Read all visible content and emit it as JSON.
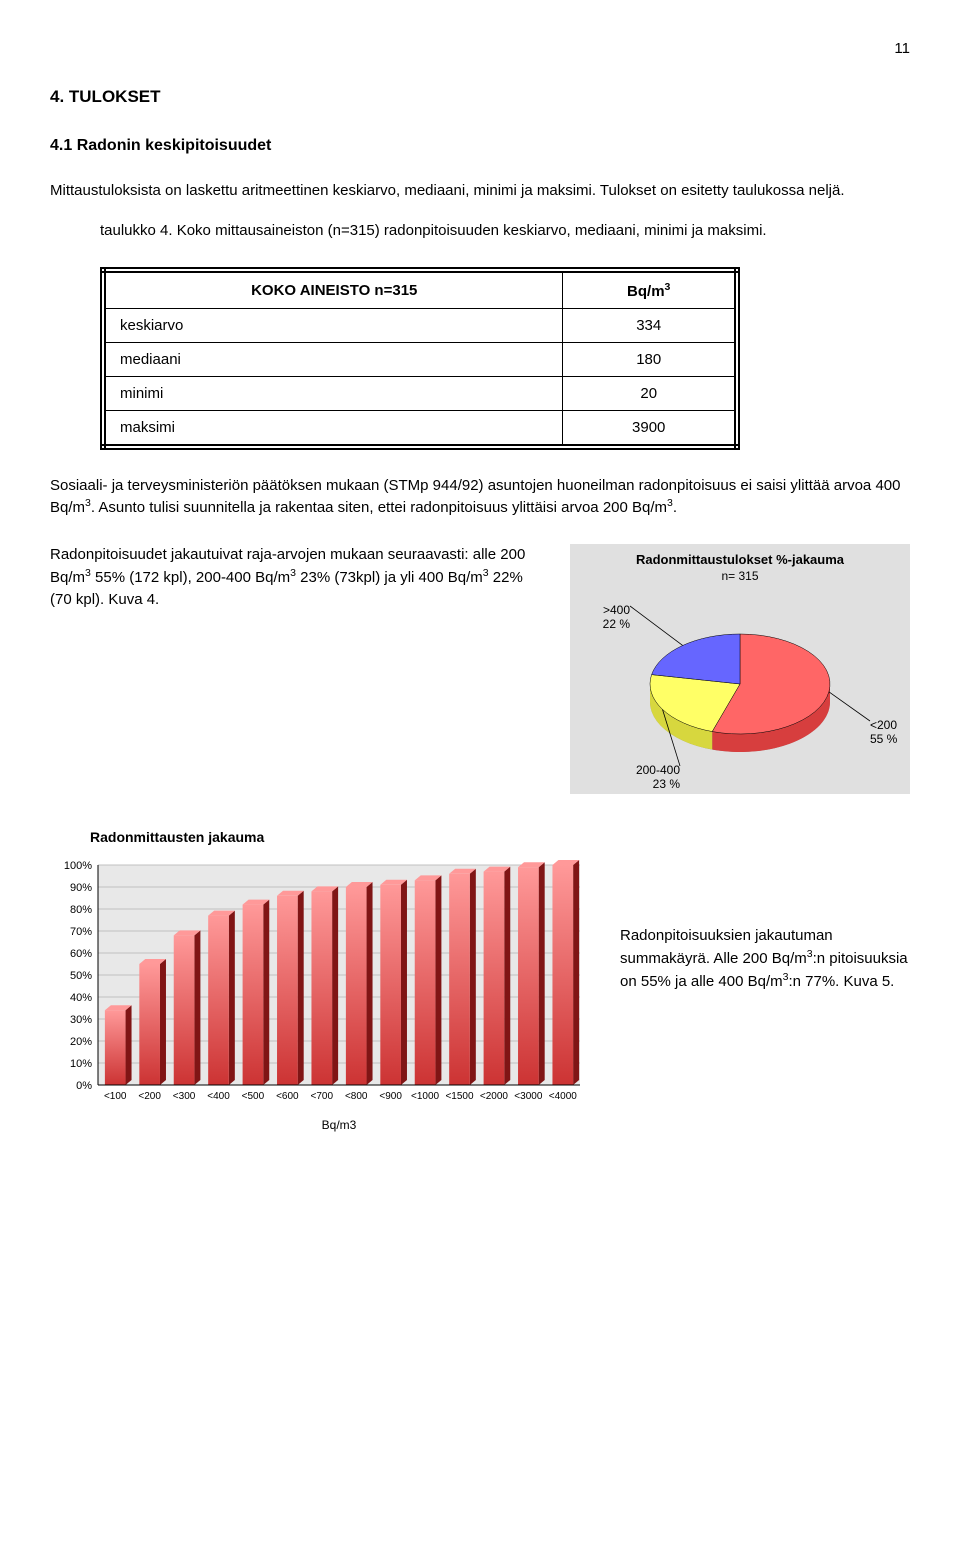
{
  "page_number": "11",
  "section_title": "4. TULOKSET",
  "subsection_title": "4.1 Radonin keskipitoisuudet",
  "para1": "Mittaustuloksista on laskettu aritmeettinen keskiarvo, mediaani, minimi ja maksimi. Tulokset on esitetty taulukossa neljä.",
  "para2": "taulukko 4. Koko mittausaineiston (n=315) radonpitoisuuden keskiarvo, mediaani, minimi ja maksimi.",
  "table": {
    "header_left": "KOKO AINEISTO n=315",
    "header_right_html": "Bq/m<sup>3</sup>",
    "rows": [
      {
        "label": "keskiarvo",
        "value": "334"
      },
      {
        "label": "mediaani",
        "value": "180"
      },
      {
        "label": "minimi",
        "value": "20"
      },
      {
        "label": "maksimi",
        "value": "3900"
      }
    ]
  },
  "para3_html": "Sosiaali- ja terveysministeriön päätöksen mukaan (STMp 944/92) asuntojen huoneilman radonpitoisuus ei saisi ylittää arvoa 400 Bq/m<sup>3</sup>. Asunto tulisi suunnitella ja rakentaa siten, ettei radonpitoisuus ylittäisi arvoa 200 Bq/m<sup>3</sup>.",
  "para4_html": "Radonpitoisuudet jakautuivat raja-arvojen mukaan seuraavasti: alle 200 Bq/m<sup>3</sup> 55% (172 kpl), 200-400 Bq/m<sup>3</sup> 23% (73kpl) ja yli 400 Bq/m<sup>3</sup> 22% (70 kpl). Kuva 4.",
  "pie": {
    "title": "Radonmittaustulokset %-jakauma",
    "subtitle": "n= 315",
    "slices": [
      {
        "label": "<200",
        "sublabel": "55 %",
        "value": 55,
        "color": "#ff6666"
      },
      {
        "label": "200-400",
        "sublabel": "23 %",
        "value": 23,
        "color": "#ffff66"
      },
      {
        "label": ">400",
        "sublabel": "22 %",
        "value": 22,
        "color": "#6666ff"
      }
    ],
    "bg": "#e0e0e0",
    "side_color": "#808080"
  },
  "bar": {
    "title": "Radonmittausten jakauma",
    "categories": [
      "<100",
      "<200",
      "<300",
      "<400",
      "<500",
      "<600",
      "<700",
      "<800",
      "<900",
      "<1000",
      "<1500",
      "<2000",
      "<3000",
      "<4000"
    ],
    "values": [
      34,
      55,
      68,
      77,
      82,
      86,
      88,
      90,
      91,
      93,
      96,
      97,
      99,
      100
    ],
    "bar_fill_top": "#ff9999",
    "bar_fill_bottom": "#cc3333",
    "bar_side": "#801515",
    "grid_color": "#c0c0c0",
    "axis_color": "#000000",
    "plot_bg": "#e8e8e8",
    "ylim": [
      0,
      100
    ],
    "ytick_step": 10,
    "ylabel_suffix": "%",
    "xlabel": "Bq/m3"
  },
  "para5_html": "Radonpitoisuuksien jakautuman summakäyrä. Alle 200 Bq/m<sup>3</sup>:n pitoisuuksia on 55% ja alle 400 Bq/m<sup>3</sup>:n 77%. Kuva 5."
}
